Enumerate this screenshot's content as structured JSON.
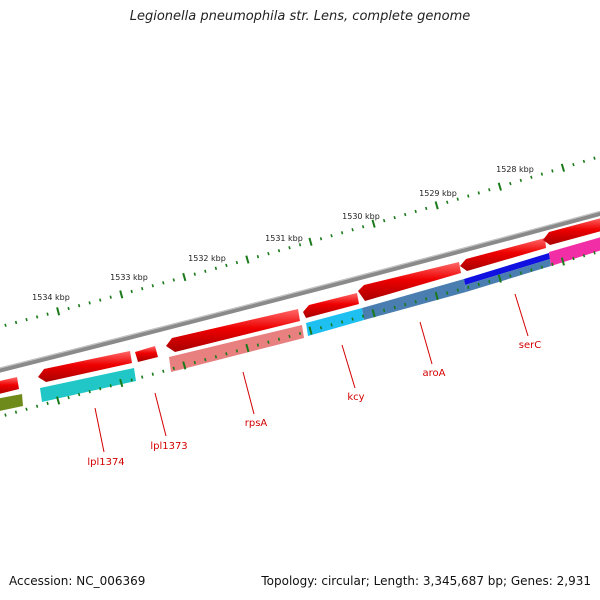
{
  "title": "Legionella pneumophila str. Lens, complete genome",
  "footer": {
    "accession": "Accession: NC_006369",
    "summary": "Topology: circular; Length: 3,345,687 bp; Genes: 2,931"
  },
  "scale_ticks": [
    {
      "label": "1534 kbp"
    },
    {
      "label": "1533 kbp"
    },
    {
      "label": "1532 kbp"
    },
    {
      "label": "1531 kbp"
    },
    {
      "label": "1530 kbp"
    },
    {
      "label": "1529 kbp"
    },
    {
      "label": "1528 kbp"
    }
  ],
  "gene_labels": [
    {
      "name": "lpl1374"
    },
    {
      "name": "lpl1373"
    },
    {
      "name": "rpsA"
    },
    {
      "name": "kcy"
    },
    {
      "name": "aroA"
    },
    {
      "name": "serC"
    }
  ],
  "colors": {
    "backbone": "#8a8a8a",
    "cds": "#ee0000",
    "cog_pink": "#e88080",
    "cog_cyan": "#21c7c7",
    "cog_skyblue": "#1ec0f2",
    "cog_steelblue": "#4a7eb0",
    "cog_blue": "#1010e0",
    "cog_magenta": "#f22ea6",
    "cog_olive": "#6e8a1a",
    "tick": "#1a7a1a",
    "label": "#d40000"
  }
}
